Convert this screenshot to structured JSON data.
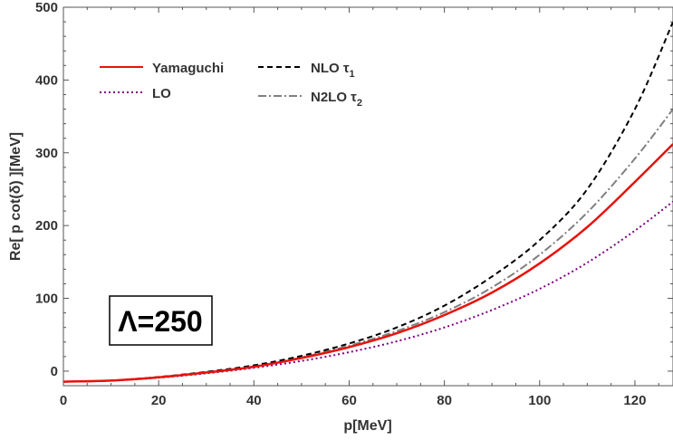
{
  "chart_data": {
    "type": "line",
    "xlabel": "p[MeV]",
    "ylabel": "Re[ p cot(δ) ][MeV]",
    "xlim": [
      0,
      128
    ],
    "ylim": [
      -20,
      500
    ],
    "x_ticks": [
      "0",
      "20",
      "40",
      "60",
      "80",
      "100",
      "120"
    ],
    "y_ticks": [
      "0",
      "100",
      "200",
      "300",
      "400",
      "500"
    ],
    "x_tick_values": [
      0,
      20,
      40,
      60,
      80,
      100,
      120
    ],
    "y_tick_values": [
      0,
      100,
      200,
      300,
      400,
      500
    ],
    "grid": false,
    "legend_position": "top-left",
    "annotation": "Λ=250",
    "series": [
      {
        "name": "Yamaguchi",
        "color": "#e8120c",
        "style": "solid",
        "x": [
          0,
          10,
          20,
          30,
          40,
          50,
          60,
          70,
          80,
          90,
          100,
          110,
          120,
          128
        ],
        "y": [
          -14.5,
          -13,
          -8.5,
          -2,
          6,
          18,
          33,
          52,
          77,
          108,
          148,
          198,
          260,
          312
        ]
      },
      {
        "name": "LO",
        "color": "#800080",
        "style": "dotted",
        "x": [
          0,
          10,
          20,
          30,
          40,
          50,
          60,
          70,
          80,
          90,
          100,
          110,
          120,
          128
        ],
        "y": [
          -14.5,
          -13,
          -9,
          -3,
          4.5,
          14,
          26,
          41,
          60,
          84,
          113,
          149,
          193,
          233
        ]
      },
      {
        "name": "NLO τ1",
        "color": "#000000",
        "style": "dashed",
        "x": [
          0,
          10,
          20,
          30,
          40,
          50,
          60,
          70,
          80,
          90,
          100,
          110,
          120,
          128
        ],
        "y": [
          -14.5,
          -13,
          -8,
          -1,
          8,
          21,
          38,
          60,
          90,
          130,
          180,
          250,
          360,
          480
        ]
      },
      {
        "name": "N2LO τ2",
        "color": "#808080",
        "style": "dashdot",
        "x": [
          0,
          10,
          20,
          30,
          40,
          50,
          60,
          70,
          80,
          90,
          100,
          110,
          120,
          128
        ],
        "y": [
          -14.5,
          -13,
          -8.5,
          -1.5,
          6.5,
          19,
          35,
          55,
          81,
          115,
          160,
          218,
          292,
          360
        ]
      }
    ],
    "legend": {
      "yamaguchi_label": "Yamaguchi",
      "lo_label": "LO",
      "nlo_label": "NLO τ",
      "nlo_sub": "1",
      "n2lo_label": "N2LO τ",
      "n2lo_sub": "2"
    }
  }
}
